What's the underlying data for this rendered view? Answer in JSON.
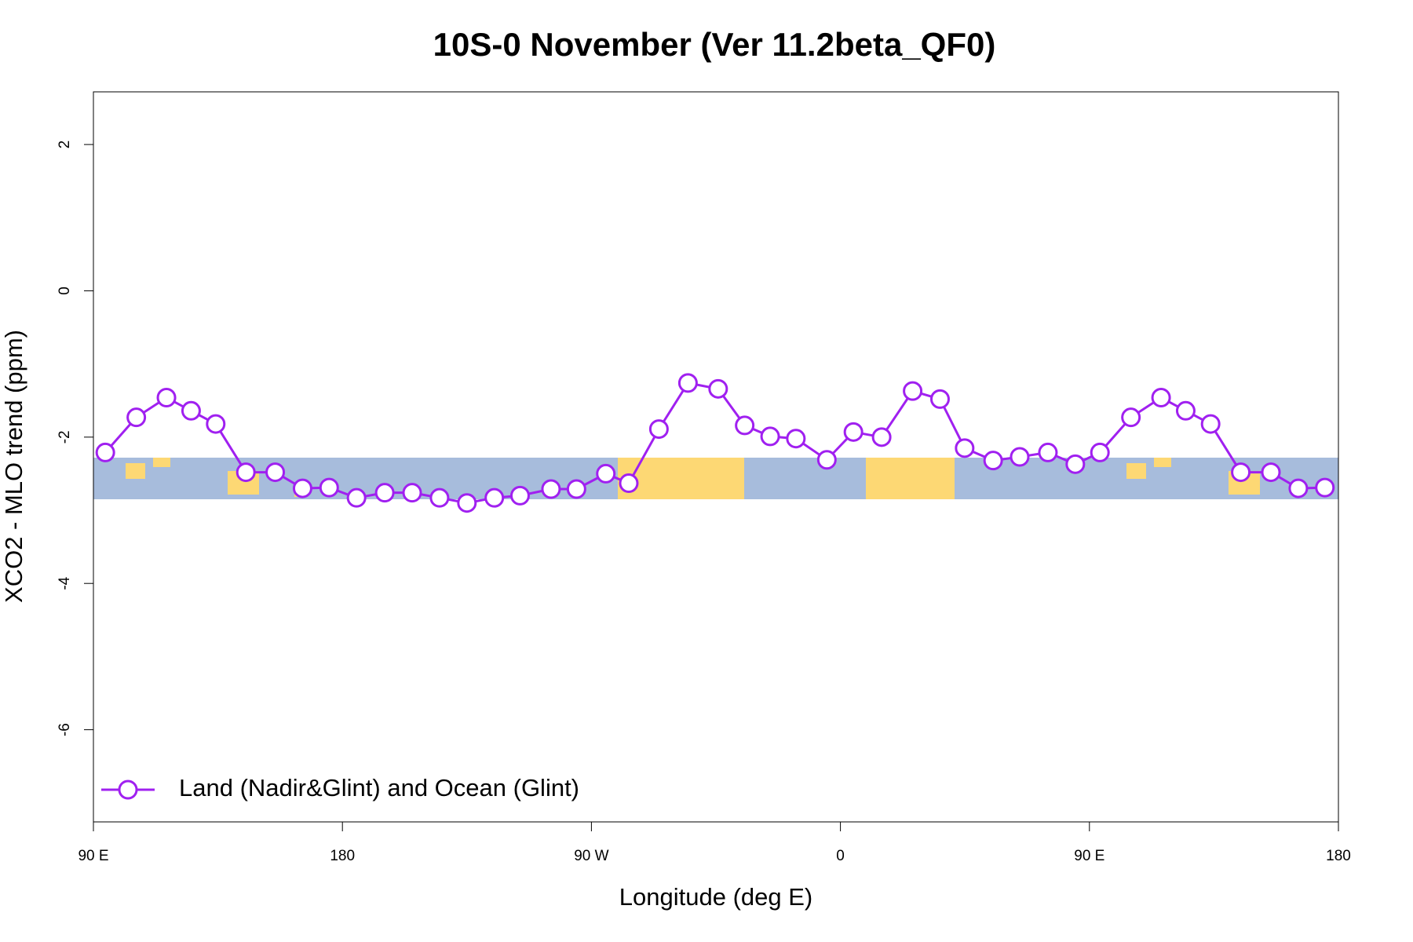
{
  "chart_data": {
    "type": "line",
    "title": "10S-0 November (Ver 11.2beta_QF0)",
    "x_label": "Longitude (deg E)",
    "y_label": "XCO2 - MLO trend (ppm)",
    "x": [
      94.3,
      105.5,
      116.4,
      125.3,
      134.2,
      145.1,
      155.7,
      165.6,
      175.2,
      185.1,
      195.3,
      205.2,
      215.1,
      225.0,
      234.9,
      244.2,
      255.4,
      264.6,
      275.2,
      283.5,
      294.4,
      304.9,
      315.8,
      325.4,
      334.6,
      343.9,
      355.1,
      364.7,
      374.9,
      386.1,
      396.0,
      404.9,
      415.2,
      424.8,
      435.0,
      444.9,
      453.8,
      465.0,
      475.9,
      484.8,
      493.8,
      504.7,
      515.6,
      525.5,
      535.1
    ],
    "series": [
      {
        "name": "Land (Nadir&Glint) and Ocean (Glint)",
        "color": "#a020f0",
        "values": [
          -2.21,
          -1.73,
          -1.46,
          -1.64,
          -1.82,
          -2.48,
          -2.48,
          -2.7,
          -2.69,
          -2.83,
          -2.76,
          -2.76,
          -2.83,
          -2.9,
          -2.83,
          -2.8,
          -2.71,
          -2.71,
          -2.5,
          -2.63,
          -1.89,
          -1.26,
          -1.34,
          -1.84,
          -1.99,
          -2.02,
          -2.31,
          -1.93,
          -2.0,
          -1.37,
          -1.48,
          -2.15,
          -2.32,
          -2.27,
          -2.21,
          -2.37,
          -2.21,
          -1.73,
          -1.46,
          -1.64,
          -1.82,
          -2.48,
          -2.48,
          -2.7,
          -2.69
        ]
      }
    ],
    "xlim": [
      90,
      540
    ],
    "xticks": [
      {
        "value": 90,
        "label": "90 E"
      },
      180,
      {
        "value": 270,
        "label": "90 W"
      },
      {
        "value": 360,
        "label": "0"
      },
      {
        "value": 450,
        "label": "90 E"
      },
      {
        "value": 540,
        "label": "180"
      }
    ],
    "ylim": [
      -7.26,
      2.72
    ],
    "yticks": [
      -6,
      -4,
      -2,
      0,
      2
    ],
    "legend": "bottom-left"
  }
}
